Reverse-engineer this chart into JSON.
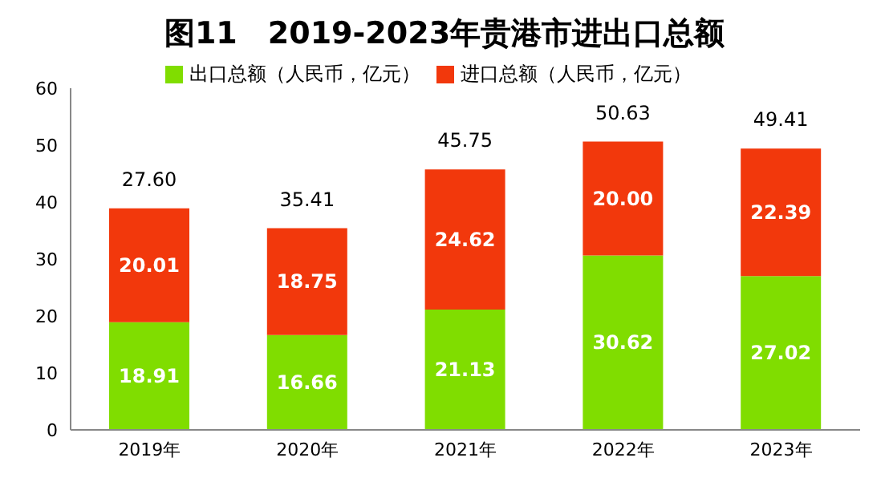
{
  "chart_data": {
    "type": "bar",
    "title": "图11　2019-2023年贵港市进出口总额",
    "categories": [
      "2019年",
      "2020年",
      "2021年",
      "2022年",
      "2023年"
    ],
    "stacked": true,
    "legend": "top",
    "series": [
      {
        "name": "出口总额（人民币，亿元）",
        "color": "#80dd00",
        "values": [
          18.91,
          16.66,
          21.13,
          30.62,
          27.02
        ],
        "value_labels": [
          "18.91",
          "16.66",
          "21.13",
          "30.62",
          "27.02"
        ]
      },
      {
        "name": "进口总额（人民币，亿元）",
        "color": "#f2380c",
        "values": [
          20.01,
          18.75,
          24.62,
          20.0,
          22.39
        ],
        "value_labels": [
          "20.01",
          "18.75",
          "24.62",
          "20.00",
          "22.39"
        ]
      }
    ],
    "annotations": [
      "27.60",
      "35.41",
      "45.75",
      "50.63",
      "49.41"
    ],
    "ylim": [
      0,
      60
    ],
    "yticks": [
      0,
      10,
      20,
      30,
      40,
      50,
      60
    ],
    "grid": false
  }
}
